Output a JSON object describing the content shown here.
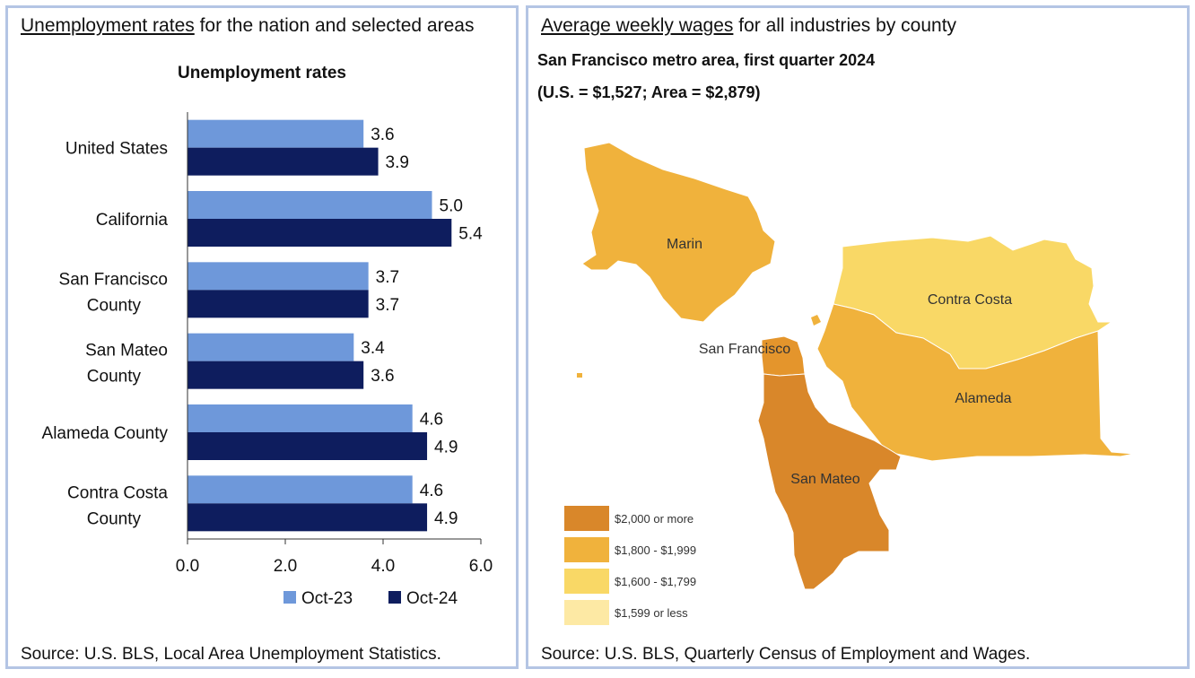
{
  "left": {
    "title_underlined": "Unemployment rates",
    "title_rest": " for the nation and selected areas",
    "source": "Source: U.S. BLS, Local Area Unemployment Statistics."
  },
  "right": {
    "title_underlined": "Average weekly wages",
    "title_rest": " for all industries by county",
    "subtitle1": "San Francisco metro area, first quarter 2024",
    "subtitle2": "(U.S. = $1,527; Area = $2,879)",
    "source": "Source: U.S. BLS, Quarterly Census of Employment and Wages.",
    "map": {
      "counties": [
        {
          "name": "Marin",
          "color": "#f0b23c"
        },
        {
          "name": "Contra Costa",
          "color": "#f9d866"
        },
        {
          "name": "San Francisco",
          "color": "#e4952c"
        },
        {
          "name": "Alameda",
          "color": "#f0b23c"
        },
        {
          "name": "San Mateo",
          "color": "#d9872a"
        }
      ],
      "legend": [
        {
          "label": "$2,000 or more",
          "color": "#d9872a"
        },
        {
          "label": "$1,800 - $1,999",
          "color": "#f0b23c"
        },
        {
          "label": "$1,600 - $1,799",
          "color": "#f9d866"
        },
        {
          "label": "$1,599 or less",
          "color": "#fde9a4"
        }
      ]
    }
  },
  "chart_data": {
    "type": "bar",
    "orientation": "horizontal",
    "title": "Unemployment rates",
    "categories": [
      [
        "United States"
      ],
      [
        "California"
      ],
      [
        "San Francisco",
        "County"
      ],
      [
        "San Mateo",
        "County"
      ],
      [
        "Alameda County"
      ],
      [
        "Contra Costa",
        "County"
      ]
    ],
    "series": [
      {
        "name": "Oct-23",
        "color": "#6e98da",
        "values": [
          3.6,
          5.0,
          3.7,
          3.4,
          4.6,
          4.6
        ],
        "labels": [
          "3.6",
          "5.0",
          "3.7",
          "3.4",
          "4.6",
          "4.6"
        ]
      },
      {
        "name": "Oct-24",
        "color": "#0e1d5e",
        "values": [
          3.9,
          5.4,
          3.7,
          3.6,
          4.9,
          4.9
        ],
        "labels": [
          "3.9",
          "5.4",
          "3.7",
          "3.6",
          "4.9",
          "4.9"
        ]
      }
    ],
    "xlim": [
      0,
      6
    ],
    "xticks": [
      0,
      2,
      4,
      6
    ],
    "xtick_labels": [
      "0.0",
      "2.0",
      "4.0",
      "6.0"
    ],
    "legend_position": "bottom"
  }
}
